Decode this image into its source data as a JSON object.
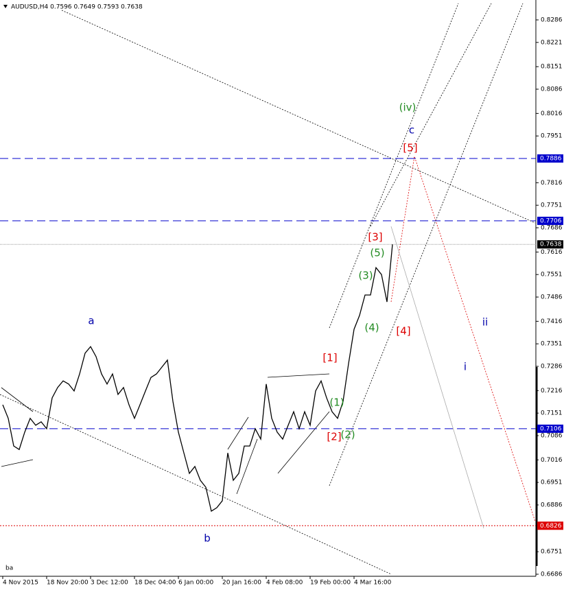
{
  "chart_data": {
    "type": "line",
    "title": "AUDUSD,H4  0.7596 0.7649 0.7593 0.7638",
    "footer": "ba",
    "categories": [
      "4 Nov 2015",
      null,
      null,
      null,
      null,
      null,
      null,
      null,
      "18 Nov 20:00",
      null,
      null,
      null,
      null,
      null,
      null,
      null,
      "3 Dec 12:00",
      null,
      null,
      null,
      null,
      null,
      null,
      null,
      "18 Dec 04:00",
      null,
      null,
      null,
      null,
      null,
      null,
      null,
      "6 Jan 00:00",
      null,
      null,
      null,
      null,
      null,
      null,
      null,
      "20 Jan 16:00",
      null,
      null,
      null,
      null,
      null,
      null,
      null,
      "4 Feb 08:00",
      null,
      null,
      null,
      null,
      null,
      null,
      null,
      "19 Feb 00:00",
      null,
      null,
      null,
      null,
      null,
      null,
      null,
      "4 Mar 16:00",
      null,
      null,
      null,
      null,
      null,
      null,
      null
    ],
    "series": [
      {
        "name": "AUDUSD",
        "color": "#000000",
        "values": [
          0.7175,
          0.7136,
          0.7056,
          0.7046,
          0.7096,
          0.7136,
          0.7116,
          0.7126,
          0.7106,
          0.7195,
          0.7225,
          0.7244,
          0.7235,
          0.7215,
          0.7264,
          0.7324,
          0.7343,
          0.7314,
          0.7264,
          0.7235,
          0.7264,
          0.7205,
          0.7225,
          0.7175,
          0.7136,
          0.7175,
          0.7215,
          0.7254,
          0.7264,
          0.7284,
          0.7304,
          0.7185,
          0.7096,
          0.7036,
          0.6977,
          0.6997,
          0.6957,
          0.6937,
          0.6868,
          0.6878,
          0.6898,
          0.7036,
          0.6957,
          0.6977,
          0.7056,
          0.7056,
          0.7106,
          0.7076,
          0.7235,
          0.7136,
          0.7096,
          0.7076,
          0.7116,
          0.7155,
          0.7106,
          0.7155,
          0.7116,
          0.7215,
          0.7244,
          0.7195,
          0.7155,
          0.7136,
          0.7185,
          0.7294,
          0.7393,
          0.7433,
          0.7492,
          0.7492,
          0.7571,
          0.7551,
          0.7472,
          0.7638
        ]
      }
    ],
    "ylim": [
      0.6686,
      0.8286
    ],
    "yticks": [
      0.8286,
      0.8221,
      0.8151,
      0.8086,
      0.8016,
      0.7951,
      0.7816,
      0.7751,
      0.7686,
      0.7616,
      0.7551,
      0.7486,
      0.7416,
      0.7351,
      0.7286,
      0.7216,
      0.7151,
      0.7086,
      0.7016,
      0.6951,
      0.6886,
      0.6751,
      0.6686
    ],
    "levels": [
      {
        "value": 0.7886,
        "color": "#0000cc"
      },
      {
        "value": 0.7706,
        "color": "#0000cc"
      },
      {
        "value": 0.7638,
        "color": "#000000"
      },
      {
        "value": 0.7106,
        "color": "#0000cc"
      },
      {
        "value": 0.6826,
        "color": "#dd0000"
      }
    ],
    "annotations": [
      {
        "text": "a",
        "color": "#0000aa"
      },
      {
        "text": "b",
        "color": "#0000aa"
      },
      {
        "text": "c",
        "color": "#0000aa"
      },
      {
        "text": "i",
        "color": "#0000aa"
      },
      {
        "text": "ii",
        "color": "#0000aa"
      },
      {
        "text": "(iv)",
        "color": "#228b22"
      },
      {
        "text": "[5]",
        "color": "#dd0000"
      },
      {
        "text": "[3]",
        "color": "#dd0000"
      },
      {
        "text": "(5)",
        "color": "#228b22"
      },
      {
        "text": "(3)",
        "color": "#228b22"
      },
      {
        "text": "(4)",
        "color": "#228b22"
      },
      {
        "text": "[4]",
        "color": "#dd0000"
      },
      {
        "text": "[1]",
        "color": "#dd0000"
      },
      {
        "text": "(1)",
        "color": "#228b22"
      },
      {
        "text": "[2]",
        "color": "#dd0000"
      },
      {
        "text": "(2)",
        "color": "#228b22"
      }
    ]
  }
}
